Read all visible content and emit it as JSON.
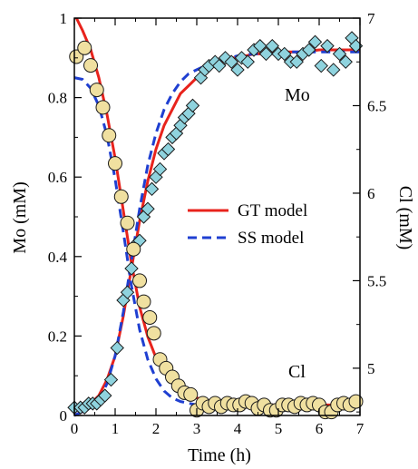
{
  "chart_data": {
    "type": "scatter",
    "xlabel": "Time (h)",
    "ylabel": "Mo (mM)",
    "y2label": "Cl (mM)",
    "xlim": [
      0,
      7
    ],
    "ylim": [
      0,
      1
    ],
    "y2lim": [
      4.73,
      7
    ],
    "x_ticks": [
      "0",
      "1",
      "2",
      "3",
      "4",
      "5",
      "6",
      "7"
    ],
    "y_ticks": [
      "0",
      "0.2",
      "0.4",
      "0.6",
      "0.8",
      "1"
    ],
    "y2_ticks": [
      "5",
      "5.5",
      "6",
      "6.5",
      "7"
    ],
    "grid": false,
    "legend": {
      "position": "center-right",
      "entries": [
        "GT model",
        "SS model"
      ]
    },
    "annotations": [
      "Mo",
      "Cl"
    ],
    "series": [
      {
        "axis": "left",
        "marker": "diamond",
        "color": "#8fd3de",
        "x": [
          0.0,
          0.15,
          0.25,
          0.35,
          0.45,
          0.55,
          0.65,
          0.75,
          0.9,
          1.05,
          1.2,
          1.3,
          1.4,
          1.5,
          1.6,
          1.7,
          1.8,
          1.9,
          2.0,
          2.1,
          2.2,
          2.3,
          2.4,
          2.5,
          2.6,
          2.7,
          2.8,
          2.9,
          3.1,
          3.2,
          3.3,
          3.45,
          3.55,
          3.7,
          3.85,
          4.0,
          4.1,
          4.25,
          4.4,
          4.55,
          4.7,
          4.85,
          5.0,
          5.15,
          5.3,
          5.45,
          5.6,
          5.75,
          5.9,
          6.05,
          6.2,
          6.35,
          6.5,
          6.65,
          6.8,
          6.9
        ],
        "y": [
          0.02,
          0.02,
          0.02,
          0.03,
          0.03,
          0.03,
          0.04,
          0.05,
          0.09,
          0.17,
          0.29,
          0.31,
          0.37,
          0.43,
          0.44,
          0.5,
          0.52,
          0.57,
          0.6,
          0.62,
          0.66,
          0.67,
          0.7,
          0.71,
          0.73,
          0.75,
          0.76,
          0.78,
          0.85,
          0.87,
          0.88,
          0.89,
          0.88,
          0.9,
          0.89,
          0.87,
          0.9,
          0.89,
          0.92,
          0.93,
          0.91,
          0.93,
          0.91,
          0.91,
          0.89,
          0.89,
          0.91,
          0.92,
          0.94,
          0.88,
          0.93,
          0.87,
          0.91,
          0.89,
          0.95,
          0.93
        ]
      },
      {
        "axis": "right",
        "marker": "circle",
        "color": "#f0e0a0",
        "x": [
          0.05,
          0.25,
          0.4,
          0.55,
          0.7,
          0.85,
          1.0,
          1.15,
          1.3,
          1.45,
          1.6,
          1.7,
          1.85,
          1.95,
          2.1,
          2.25,
          2.4,
          2.55,
          2.7,
          2.85,
          3.0,
          3.15,
          3.3,
          3.45,
          3.6,
          3.75,
          3.9,
          4.05,
          4.2,
          4.35,
          4.5,
          4.65,
          4.8,
          4.95,
          5.1,
          5.25,
          5.4,
          5.55,
          5.7,
          5.85,
          6.0,
          6.15,
          6.3,
          6.45,
          6.6,
          6.75,
          6.9
        ],
        "y": [
          6.78,
          6.83,
          6.73,
          6.59,
          6.49,
          6.33,
          6.17,
          5.98,
          5.83,
          5.68,
          5.5,
          5.38,
          5.29,
          5.2,
          5.05,
          5.0,
          4.95,
          4.9,
          4.86,
          4.85,
          4.76,
          4.8,
          4.78,
          4.8,
          4.78,
          4.8,
          4.79,
          4.79,
          4.81,
          4.8,
          4.77,
          4.79,
          4.76,
          4.76,
          4.79,
          4.79,
          4.78,
          4.8,
          4.79,
          4.8,
          4.79,
          4.75,
          4.75,
          4.79,
          4.8,
          4.79,
          4.81
        ]
      },
      {
        "name": "GT model",
        "axis": "left",
        "style": "solid",
        "color": "#e8231c",
        "x": [
          0,
          0.2,
          0.4,
          0.6,
          0.8,
          1.0,
          1.2,
          1.4,
          1.6,
          1.8,
          2.0,
          2.2,
          2.4,
          2.6,
          2.8,
          3.0,
          3.2,
          3.4,
          3.6,
          3.8,
          4.0,
          4.4,
          4.8,
          5.2,
          5.6,
          6.0,
          6.4,
          6.8,
          7.0
        ],
        "y": [
          0.0,
          0.01,
          0.03,
          0.05,
          0.09,
          0.15,
          0.25,
          0.37,
          0.49,
          0.59,
          0.67,
          0.73,
          0.77,
          0.81,
          0.83,
          0.85,
          0.87,
          0.88,
          0.89,
          0.9,
          0.9,
          0.91,
          0.91,
          0.915,
          0.915,
          0.92,
          0.92,
          0.92,
          0.92
        ]
      },
      {
        "name": "GT model",
        "axis": "right",
        "style": "solid",
        "color": "#e8231c",
        "x": [
          0.05,
          0.2,
          0.4,
          0.6,
          0.8,
          1.0,
          1.2,
          1.4,
          1.6,
          1.8,
          2.0,
          2.2,
          2.4,
          2.6,
          2.8,
          3.0,
          3.2,
          3.4,
          3.6,
          3.8,
          4.0,
          4.4,
          4.8,
          5.2,
          5.6,
          6.0,
          6.4,
          6.8,
          7.0
        ],
        "y": [
          7.0,
          6.93,
          6.82,
          6.66,
          6.45,
          6.2,
          5.9,
          5.6,
          5.35,
          5.18,
          5.06,
          4.98,
          4.92,
          4.88,
          4.85,
          4.83,
          4.82,
          4.81,
          4.8,
          4.8,
          4.79,
          4.79,
          4.79,
          4.79,
          4.79,
          4.79,
          4.79,
          4.79,
          4.79
        ]
      },
      {
        "name": "SS model",
        "axis": "left",
        "style": "dashed",
        "color": "#1f3fd1",
        "x": [
          0,
          0.2,
          0.4,
          0.6,
          0.8,
          1.0,
          1.2,
          1.4,
          1.6,
          1.8,
          2.0,
          2.2,
          2.4,
          2.6,
          2.8,
          3.0,
          3.2,
          3.4,
          3.6,
          3.8,
          4.0,
          4.4,
          4.8,
          5.2,
          5.6,
          6.0,
          6.4,
          6.8,
          7.0
        ],
        "y": [
          0.0,
          0.01,
          0.02,
          0.04,
          0.08,
          0.15,
          0.26,
          0.39,
          0.52,
          0.63,
          0.71,
          0.77,
          0.81,
          0.84,
          0.86,
          0.87,
          0.88,
          0.89,
          0.895,
          0.9,
          0.905,
          0.91,
          0.91,
          0.915,
          0.915,
          0.915,
          0.915,
          0.915,
          0.915
        ]
      },
      {
        "name": "SS model",
        "axis": "right",
        "style": "dashed",
        "color": "#1f3fd1",
        "x": [
          0,
          0.2,
          0.4,
          0.6,
          0.8,
          1.0,
          1.2,
          1.4,
          1.6,
          1.8,
          2.0,
          2.2,
          2.4,
          2.6,
          2.8,
          3.0,
          3.2,
          3.4,
          3.6,
          3.8,
          4.0
        ],
        "y": [
          6.66,
          6.65,
          6.6,
          6.5,
          6.33,
          6.08,
          5.78,
          5.47,
          5.22,
          5.05,
          4.94,
          4.87,
          4.83,
          4.81,
          4.8,
          4.79,
          4.79,
          4.79,
          4.79,
          4.79,
          4.79
        ]
      }
    ]
  }
}
